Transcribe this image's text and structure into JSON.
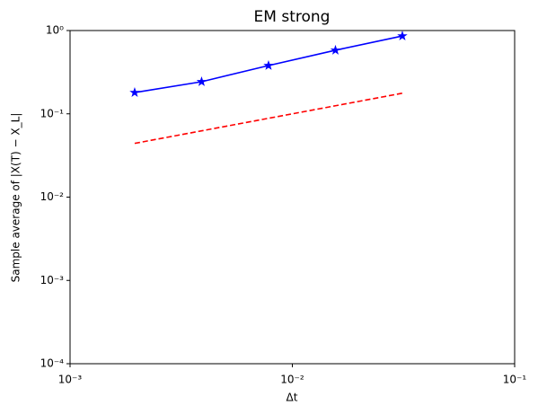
{
  "chart_data": {
    "type": "line",
    "title": "EM strong",
    "xlabel": "Δt",
    "ylabel": "Sample average of |X(T) − X_L|",
    "x": [
      0.001953,
      0.003906,
      0.0078125,
      0.015625,
      0.03125
    ],
    "series": [
      {
        "color": "#0000ff",
        "linestyle": "solid",
        "marker": "star",
        "values": [
          0.18,
          0.243,
          0.38,
          0.58,
          0.86
        ]
      },
      {
        "color": "#ff0000",
        "linestyle": "dashed",
        "values": [
          0.0442,
          0.0625,
          0.0884,
          0.125,
          0.1768
        ]
      }
    ],
    "xscale": "log",
    "yscale": "log",
    "xlim": [
      0.001,
      0.1
    ],
    "ylim": [
      0.0001,
      1
    ],
    "xticks": [
      {
        "value": 0.001,
        "label": "10⁻³"
      },
      {
        "value": 0.01,
        "label": "10⁻²"
      },
      {
        "value": 0.1,
        "label": "10⁻¹"
      }
    ],
    "yticks": [
      {
        "value": 0.0001,
        "label": "10⁻⁴"
      },
      {
        "value": 0.001,
        "label": "10⁻³"
      },
      {
        "value": 0.01,
        "label": "10⁻²"
      },
      {
        "value": 0.1,
        "label": "10⁻¹"
      },
      {
        "value": 1,
        "label": "10⁰"
      }
    ]
  }
}
